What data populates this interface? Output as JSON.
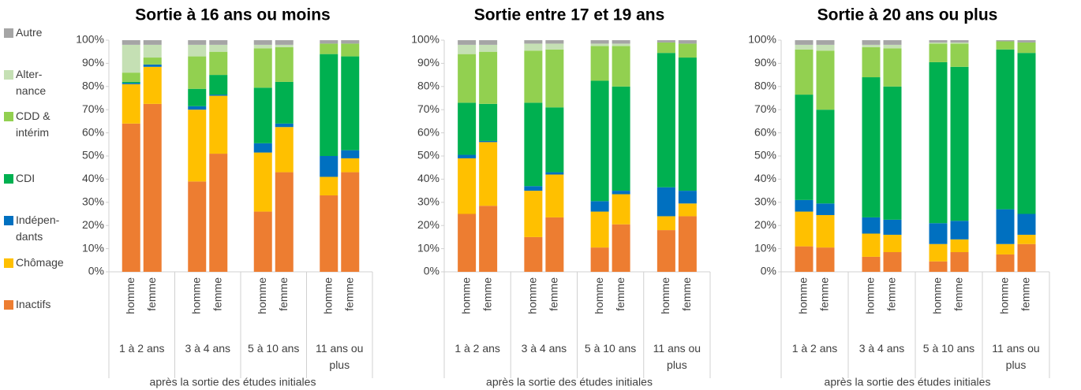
{
  "chart_data": [
    {
      "type": "stacked-bar",
      "title": "Sortie à 16 ans ou moins",
      "x_label": "après la sortie des études initiales",
      "categories": [
        "homme",
        "femme",
        "homme",
        "femme",
        "homme",
        "femme",
        "homme",
        "femme"
      ],
      "groups": [
        "1 à 2 ans",
        "3 à 4 ans",
        "5 à 10 ans",
        "11 ans ou plus"
      ],
      "ylim": [
        0,
        100
      ],
      "yticks": [
        {
          "value": 0,
          "label": "0%"
        },
        {
          "value": 10,
          "label": "10%"
        },
        {
          "value": 20,
          "label": "20%"
        },
        {
          "value": 30,
          "label": "30%"
        },
        {
          "value": 40,
          "label": "40%"
        },
        {
          "value": 50,
          "label": "50%"
        },
        {
          "value": 60,
          "label": "60%"
        },
        {
          "value": 70,
          "label": "70%"
        },
        {
          "value": 80,
          "label": "80%"
        },
        {
          "value": 90,
          "label": "90%"
        },
        {
          "value": 100,
          "label": "100%"
        }
      ],
      "series": [
        {
          "name": "Inactifs",
          "color": "#ED7D31",
          "values": [
            64,
            72.5,
            39,
            51,
            26,
            43,
            33,
            43
          ]
        },
        {
          "name": "Chômage",
          "color": "#FFC000",
          "values": [
            17,
            16,
            31,
            25,
            25.5,
            19.5,
            8,
            6
          ]
        },
        {
          "name": "Indépen-dants",
          "color": "#0070C0",
          "values": [
            0.5,
            1,
            1.5,
            0.5,
            4,
            1.5,
            9,
            3.5
          ]
        },
        {
          "name": "CDI",
          "color": "#00B050",
          "values": [
            0.5,
            0,
            7.5,
            8.5,
            24,
            18,
            44,
            40.5
          ]
        },
        {
          "name": "CDD & intérim",
          "color": "#92D050",
          "values": [
            4,
            3,
            14,
            10,
            17,
            15,
            4.5,
            5.5
          ]
        },
        {
          "name": "Alter-nance",
          "color": "#C5E0B4",
          "values": [
            12,
            5.5,
            5,
            3,
            1.5,
            1,
            0,
            0
          ]
        },
        {
          "name": "Autre",
          "color": "#A5A5A5",
          "values": [
            2,
            2,
            2,
            2,
            2,
            2,
            1.5,
            1.5
          ]
        }
      ]
    },
    {
      "type": "stacked-bar",
      "title": "Sortie entre 17 et 19 ans",
      "x_label": "après la sortie des études initiales",
      "categories": [
        "homme",
        "femme",
        "homme",
        "femme",
        "homme",
        "femme",
        "homme",
        "femme"
      ],
      "groups": [
        "1 à 2 ans",
        "3 à 4 ans",
        "5 à 10 ans",
        "11 ans ou plus"
      ],
      "ylim": [
        0,
        100
      ],
      "yticks": [
        {
          "value": 0,
          "label": "0%"
        },
        {
          "value": 10,
          "label": "10%"
        },
        {
          "value": 20,
          "label": "20%"
        },
        {
          "value": 30,
          "label": "30%"
        },
        {
          "value": 40,
          "label": "40%"
        },
        {
          "value": 50,
          "label": "50%"
        },
        {
          "value": 60,
          "label": "60%"
        },
        {
          "value": 70,
          "label": "70%"
        },
        {
          "value": 80,
          "label": "80%"
        },
        {
          "value": 90,
          "label": "90%"
        },
        {
          "value": 100,
          "label": "100%"
        }
      ],
      "series": [
        {
          "name": "Inactifs",
          "color": "#ED7D31",
          "values": [
            25,
            28.5,
            15,
            23.5,
            10.5,
            20.5,
            18,
            24
          ]
        },
        {
          "name": "Chômage",
          "color": "#FFC000",
          "values": [
            24,
            27.5,
            20,
            18.5,
            15.5,
            13,
            6,
            5.5
          ]
        },
        {
          "name": "Indépen-dants",
          "color": "#0070C0",
          "values": [
            1.5,
            0.5,
            2,
            1,
            4.5,
            1.5,
            12.5,
            5.5
          ]
        },
        {
          "name": "CDI",
          "color": "#00B050",
          "values": [
            22.5,
            16,
            36,
            28,
            52,
            45,
            58,
            57.5
          ]
        },
        {
          "name": "CDD & intérim",
          "color": "#92D050",
          "values": [
            21,
            22.5,
            22.5,
            25,
            15,
            17.5,
            4.5,
            6
          ]
        },
        {
          "name": "Alter-nance",
          "color": "#C5E0B4",
          "values": [
            4,
            3,
            3,
            2.5,
            1,
            1,
            0,
            0
          ]
        },
        {
          "name": "Autre",
          "color": "#A5A5A5",
          "values": [
            2,
            2,
            1.5,
            1.5,
            1.5,
            1.5,
            1,
            1.5
          ]
        }
      ]
    },
    {
      "type": "stacked-bar",
      "title": "Sortie à 20 ans ou plus",
      "x_label": "après la sortie des études initiales",
      "categories": [
        "homme",
        "femme",
        "homme",
        "femme",
        "homme",
        "femme",
        "homme",
        "femme"
      ],
      "groups": [
        "1 à 2 ans",
        "3 à 4 ans",
        "5 à 10 ans",
        "11 ans ou plus"
      ],
      "ylim": [
        0,
        100
      ],
      "yticks": [
        {
          "value": 0,
          "label": "0%"
        },
        {
          "value": 10,
          "label": "10%"
        },
        {
          "value": 20,
          "label": "20%"
        },
        {
          "value": 30,
          "label": "30%"
        },
        {
          "value": 40,
          "label": "40%"
        },
        {
          "value": 50,
          "label": "50%"
        },
        {
          "value": 60,
          "label": "60%"
        },
        {
          "value": 70,
          "label": "70%"
        },
        {
          "value": 80,
          "label": "80%"
        },
        {
          "value": 90,
          "label": "90%"
        },
        {
          "value": 100,
          "label": "100%"
        }
      ],
      "series": [
        {
          "name": "Inactifs",
          "color": "#ED7D31",
          "values": [
            11,
            10.5,
            6.5,
            8.5,
            4.5,
            8.5,
            7.5,
            12
          ]
        },
        {
          "name": "Chômage",
          "color": "#FFC000",
          "values": [
            15,
            14,
            10,
            7.5,
            7.5,
            5.5,
            4.5,
            4
          ]
        },
        {
          "name": "Indépen-dants",
          "color": "#0070C0",
          "values": [
            5,
            5,
            7,
            6.5,
            9,
            8,
            15,
            9
          ]
        },
        {
          "name": "CDI",
          "color": "#00B050",
          "values": [
            45.5,
            40.5,
            60.5,
            57.5,
            69.5,
            66.5,
            69,
            69.5
          ]
        },
        {
          "name": "CDD & intérim",
          "color": "#92D050",
          "values": [
            19.5,
            25.5,
            13,
            16.5,
            8,
            10,
            3.5,
            4.5
          ]
        },
        {
          "name": "Alter-nance",
          "color": "#C5E0B4",
          "values": [
            2,
            2.5,
            1,
            1.5,
            0.5,
            0.5,
            0,
            0
          ]
        },
        {
          "name": "Autre",
          "color": "#A5A5A5",
          "values": [
            2,
            2,
            2,
            2,
            1,
            1,
            0.5,
            1
          ]
        }
      ]
    }
  ]
}
